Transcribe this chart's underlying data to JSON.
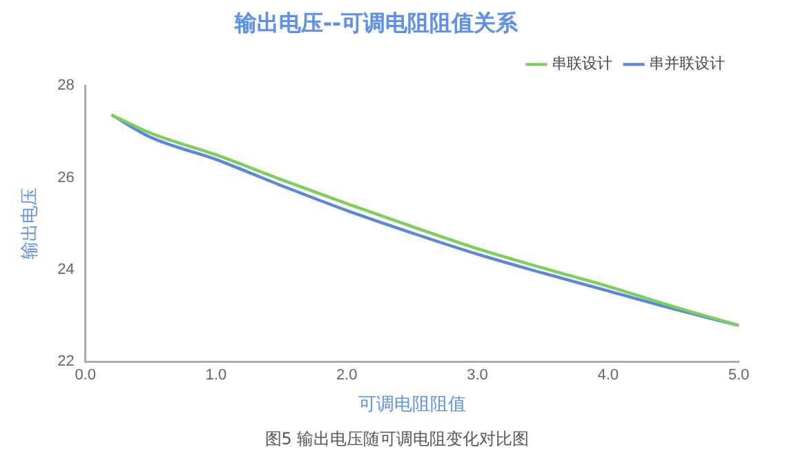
{
  "chart_data": {
    "type": "line",
    "title": "输出电压--可调电阻阻值关系",
    "xlabel": "可调电阻阻值",
    "ylabel": "输出电压",
    "annotations": [
      "图5 输出电压随可调电阻变化对比图"
    ],
    "x": [
      0.2,
      0.5,
      1,
      1.5,
      2,
      2.5,
      3,
      3.5,
      4,
      4.5,
      5
    ],
    "series": [
      {
        "name": "串联设计",
        "color": "#7ccf5a",
        "values": [
          27.37,
          26.97,
          26.5,
          25.96,
          25.44,
          24.94,
          24.46,
          24.04,
          23.64,
          23.2,
          22.79
        ]
      },
      {
        "name": "串并联设计",
        "color": "#5b86e0",
        "values": [
          27.37,
          26.88,
          26.4,
          25.83,
          25.29,
          24.8,
          24.34,
          23.93,
          23.54,
          23.15,
          22.79
        ]
      }
    ],
    "xlim": [
      0,
      5
    ],
    "xticks": [
      {
        "value": 0,
        "label": "0.0"
      },
      {
        "value": 1,
        "label": "1.0"
      },
      {
        "value": 2,
        "label": "2.0"
      },
      {
        "value": 3,
        "label": "3.0"
      },
      {
        "value": 4,
        "label": "4.0"
      },
      {
        "value": 5,
        "label": "5.0"
      }
    ],
    "ylim": [
      22,
      28
    ],
    "yticks": [
      22,
      24,
      26,
      28
    ],
    "grid": false,
    "legend": "top right",
    "marker": "none",
    "line_style": "solid"
  }
}
